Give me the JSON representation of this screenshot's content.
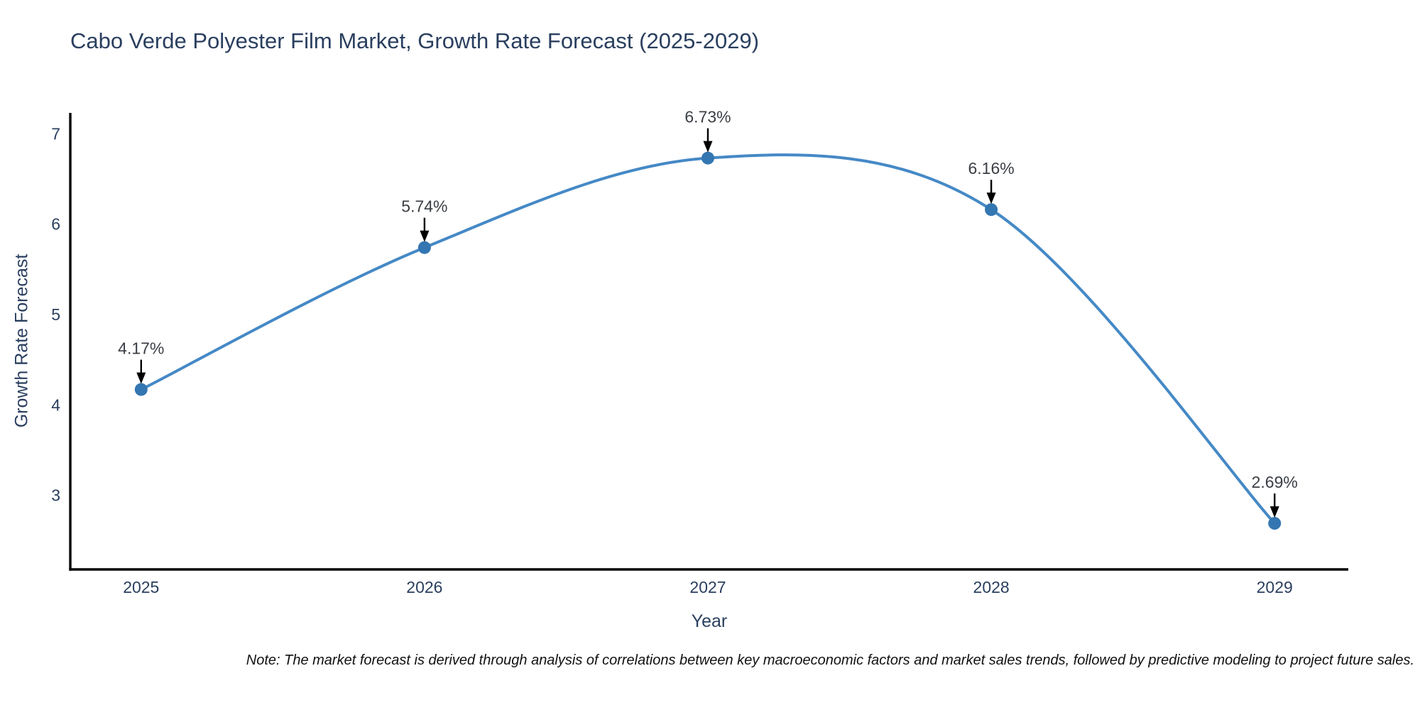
{
  "chart_data": {
    "type": "line",
    "title": "Cabo Verde Polyester Film Market, Growth Rate Forecast (2025-2029)",
    "xlabel": "Year",
    "ylabel": "Growth Rate Forecast",
    "x": [
      2025,
      2026,
      2027,
      2028,
      2029
    ],
    "values": [
      4.17,
      5.74,
      6.73,
      6.16,
      2.69
    ],
    "point_labels": [
      "4.17%",
      "5.74%",
      "6.73%",
      "6.16%",
      "2.69%"
    ],
    "series_name": "Growth Rate Forecast",
    "x_ticks": [
      "2025",
      "2026",
      "2027",
      "2028",
      "2029"
    ],
    "y_ticks": [
      3,
      4,
      5,
      6,
      7
    ],
    "xlim": [
      2024.75,
      2029.26
    ],
    "ylim": [
      2.18,
      7.23
    ],
    "line_shape": "spline",
    "grid": false,
    "legend_position": "none",
    "note": "Note: The market forecast is derived through analysis of correlations between key macroeconomic factors and market sales trends, followed by predictive modeling to project future sales.",
    "colors": {
      "background": "#ffffff",
      "axis_line": "#000000",
      "line": "#4589c6",
      "marker": "#3476b1",
      "arrow": "#000000",
      "title_text": "#2a3f5f",
      "tick_text": "#2a3f5f",
      "annotation_text": "#3a3f45",
      "note_text": "#111111"
    }
  }
}
